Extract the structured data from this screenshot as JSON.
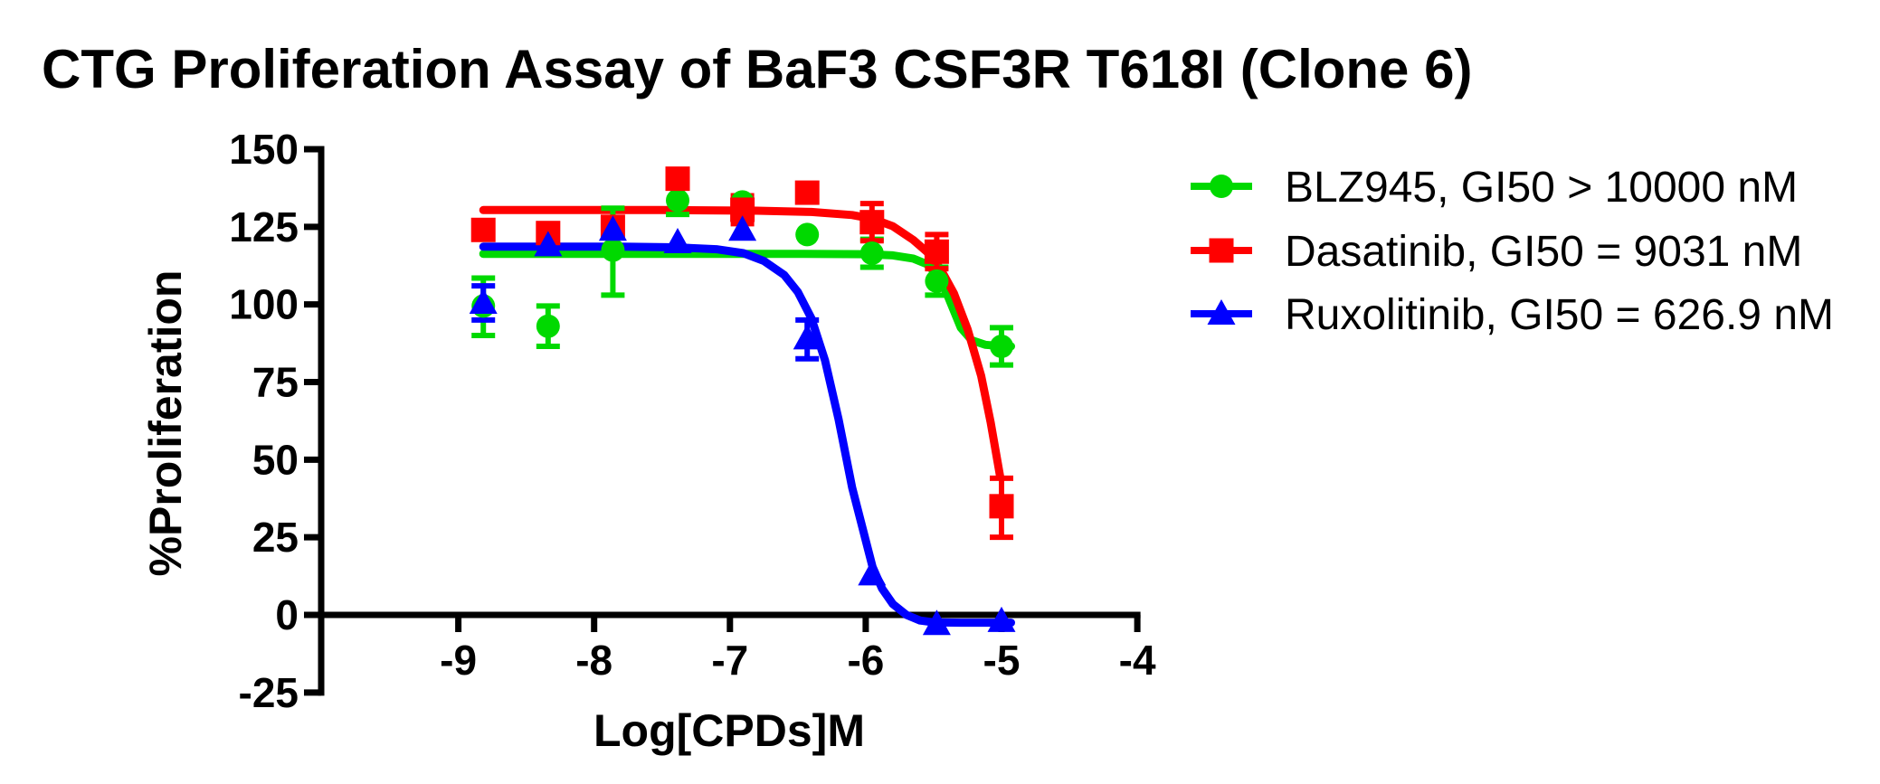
{
  "title": "CTG Proliferation Assay of BaF3 CSF3R T618I (Clone 6)",
  "chart_data": {
    "type": "scatter",
    "title": "CTG Proliferation Assay of BaF3 CSF3R T618I (Clone 6)",
    "xlabel": "Log[CPDs]M",
    "ylabel": "%Proliferation",
    "x_ticks": [
      -9,
      -8,
      -7,
      -6,
      -5,
      -4
    ],
    "y_ticks": [
      150,
      125,
      100,
      75,
      50,
      25,
      0,
      -25
    ],
    "xlim": [
      -10.0,
      -4
    ],
    "ylim": [
      -25,
      150
    ],
    "grid": false,
    "legend_position": "right",
    "x": [
      -8.816,
      -8.339,
      -7.862,
      -7.385,
      -6.908,
      -6.431,
      -5.954,
      -5.477,
      -5.0
    ],
    "series": [
      {
        "name": "BLZ945",
        "legend": "BLZ945, GI50 > 10000 nM",
        "gi50": "GI50 > 10000 nM",
        "color": "#00D900",
        "marker": "circle",
        "values": [
          99.5,
          93,
          117.5,
          133.5,
          133,
          122.5,
          116.5,
          107.5,
          86.5
        ],
        "err_up": [
          9,
          6.5,
          13.5,
          4.5,
          0,
          0,
          4.5,
          4.5,
          6
        ],
        "err_dn": [
          9.5,
          6.5,
          14.5,
          4.5,
          0,
          0,
          4.5,
          4.5,
          6
        ],
        "fit": [
          [
            -8.816,
            116.3
          ],
          [
            -7.5,
            116.3
          ],
          [
            -6.5,
            116.3
          ],
          [
            -6.0,
            116.2
          ],
          [
            -5.8,
            115.8
          ],
          [
            -5.65,
            114.8
          ],
          [
            -5.55,
            113
          ],
          [
            -5.45,
            108.5
          ],
          [
            -5.38,
            101
          ],
          [
            -5.3,
            92.5
          ],
          [
            -5.22,
            88.5
          ],
          [
            -5.12,
            87
          ],
          [
            -5.0,
            86.6
          ],
          [
            -4.93,
            86.5
          ]
        ]
      },
      {
        "name": "Dasatinib",
        "legend": "Dasatinib, GI50 = 9031 nM",
        "gi50": "GI50 = 9031 nM",
        "color": "#FF0000",
        "marker": "square",
        "values": [
          124,
          123,
          125,
          140.5,
          130.5,
          136,
          126.5,
          117,
          35
        ],
        "err_up": [
          0,
          0,
          0,
          0,
          4.5,
          0,
          6,
          5.5,
          9
        ],
        "err_dn": [
          0,
          0,
          0,
          0,
          4.5,
          0,
          6,
          5.5,
          10
        ],
        "fit": [
          [
            -8.816,
            130.4
          ],
          [
            -7.5,
            130.4
          ],
          [
            -6.8,
            130.2
          ],
          [
            -6.4,
            129.8
          ],
          [
            -6.1,
            128.8
          ],
          [
            -5.95,
            127.6
          ],
          [
            -5.8,
            125.2
          ],
          [
            -5.65,
            120.8
          ],
          [
            -5.55,
            117
          ],
          [
            -5.45,
            111.5
          ],
          [
            -5.35,
            103.5
          ],
          [
            -5.25,
            92
          ],
          [
            -5.15,
            77
          ],
          [
            -5.08,
            62
          ],
          [
            -5.01,
            44.5
          ]
        ]
      },
      {
        "name": "Ruxolitinib",
        "legend": "Ruxolitinib, GI50 = 626.9 nM",
        "gi50": "GI50 = 626.9 nM",
        "color": "#0000FF",
        "marker": "triangle",
        "values": [
          100.5,
          119,
          124,
          120,
          124,
          89,
          13,
          -3,
          -2
        ],
        "err_up": [
          5.5,
          0,
          0,
          0,
          0,
          6,
          0,
          0,
          0
        ],
        "err_dn": [
          5.5,
          0,
          0,
          0,
          0,
          6.5,
          0,
          0,
          0
        ],
        "fit": [
          [
            -8.816,
            118.6
          ],
          [
            -7.8,
            118.6
          ],
          [
            -7.4,
            118.4
          ],
          [
            -7.1,
            117.8
          ],
          [
            -6.9,
            116.5
          ],
          [
            -6.75,
            114
          ],
          [
            -6.6,
            109.5
          ],
          [
            -6.5,
            104
          ],
          [
            -6.4,
            95.5
          ],
          [
            -6.3,
            82
          ],
          [
            -6.2,
            63
          ],
          [
            -6.1,
            41
          ],
          [
            -6.0,
            24
          ],
          [
            -5.95,
            15.5
          ],
          [
            -5.88,
            8.5
          ],
          [
            -5.8,
            3.5
          ],
          [
            -5.7,
            0
          ],
          [
            -5.6,
            -1.8
          ],
          [
            -5.5,
            -2.4
          ],
          [
            -5.3,
            -2.5
          ],
          [
            -5.0,
            -2.5
          ],
          [
            -4.93,
            -2.5
          ]
        ]
      }
    ]
  }
}
